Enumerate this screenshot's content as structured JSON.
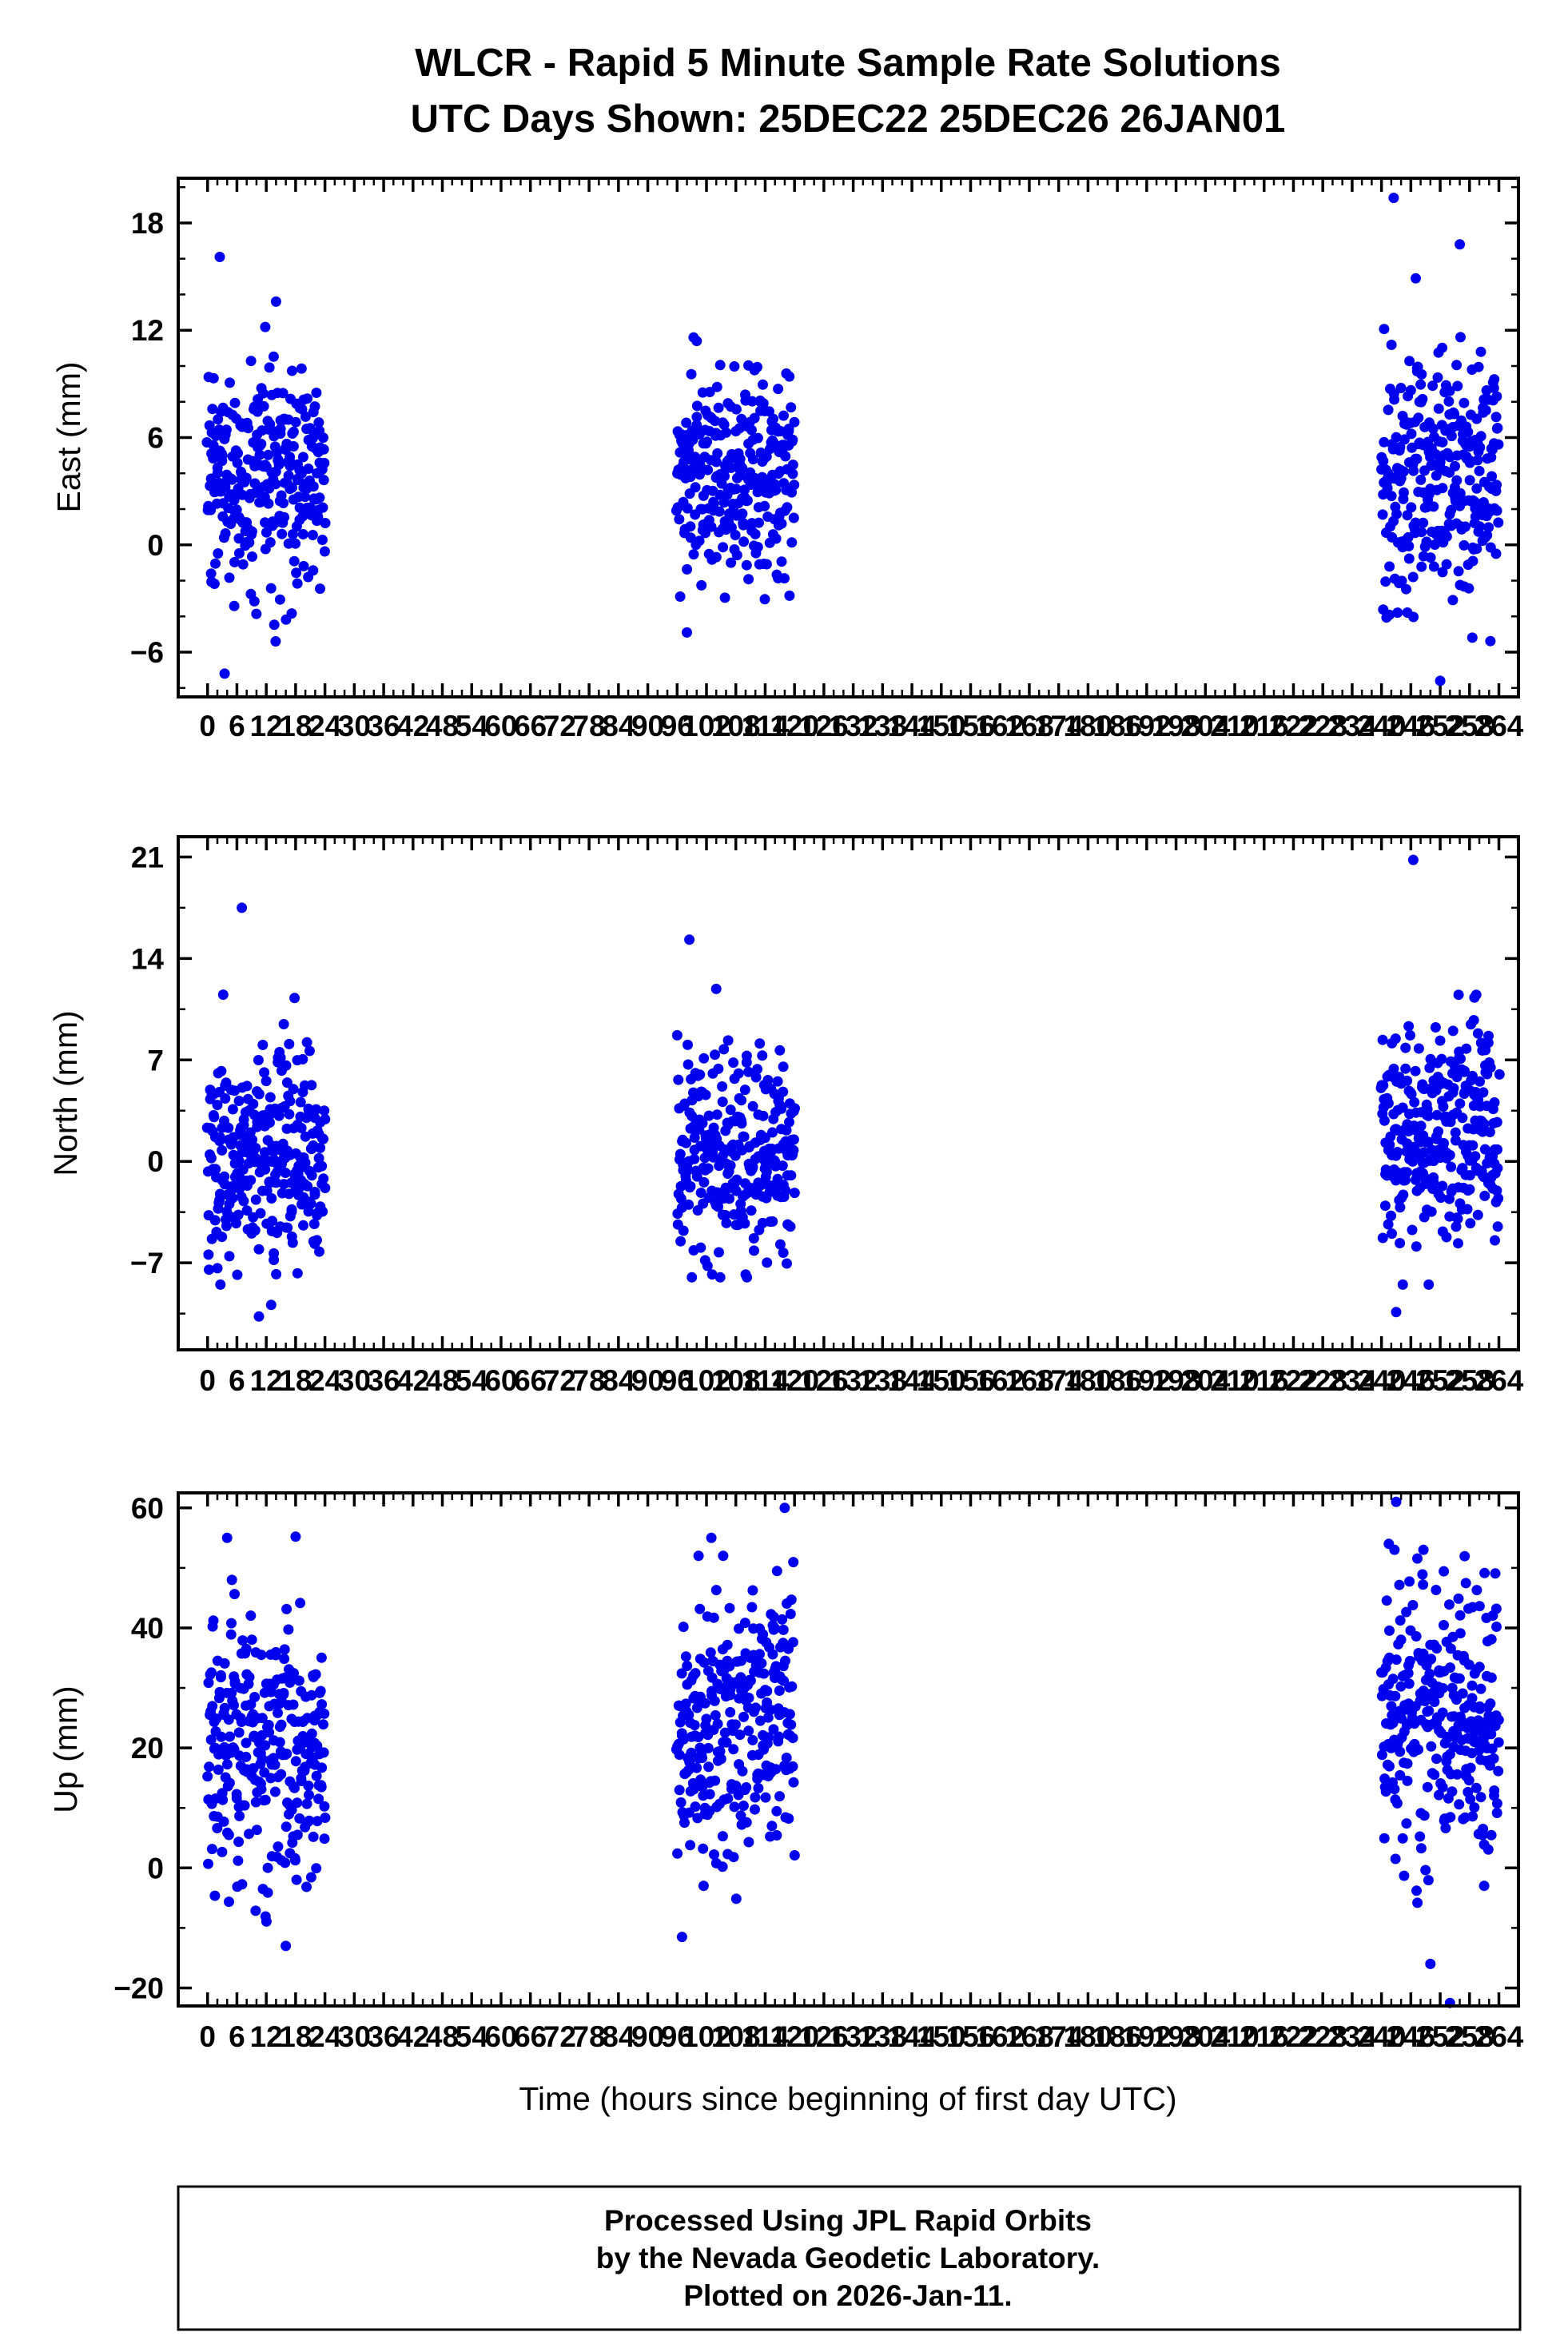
{
  "title": "WLCR - Rapid 5 Minute Sample Rate Solutions",
  "subtitle": "UTC Days Shown:  25DEC22 25DEC26 26JAN01",
  "xlabel": "Time (hours since beginning of first day UTC)",
  "footer": {
    "line1": "Processed Using JPL Rapid Orbits",
    "line2": "by the Nevada Geodetic Laboratory.",
    "line3": "Plotted on 2026-Jan-11."
  },
  "point_color": "#0000ee",
  "axis_color": "#000000",
  "chart_data": [
    {
      "type": "scatter",
      "title": "",
      "ylabel": "East (mm)",
      "ylim": [
        -8.5,
        20.5
      ],
      "yticks": [
        -6,
        0,
        6,
        12,
        18
      ],
      "y_minor_step": 2,
      "xlim": [
        -6,
        268
      ],
      "xtick_step": 6,
      "xtick_max": 264,
      "x_minor_step": 2,
      "grid": false,
      "legend": "none",
      "clusters": [
        {
          "x_start": 0,
          "x_end": 24,
          "count": 285,
          "y_mean": 3.6,
          "y_std": 3.1,
          "y_min": -5.5,
          "y_max": 12.6
        },
        {
          "x_start": 96,
          "x_end": 120,
          "count": 285,
          "y_mean": 3.7,
          "y_std": 2.9,
          "y_min": -5.0,
          "y_max": 11.6
        },
        {
          "x_start": 240,
          "x_end": 264,
          "count": 290,
          "y_mean": 3.9,
          "y_std": 3.6,
          "y_min": -6.0,
          "y_max": 14.8
        }
      ],
      "outliers": [
        [
          2.5,
          16.1
        ],
        [
          3.5,
          -7.2
        ],
        [
          14,
          13.6
        ],
        [
          100,
          11.4
        ],
        [
          98,
          -4.9
        ],
        [
          242.5,
          19.4
        ],
        [
          256,
          16.8
        ],
        [
          252,
          -7.6
        ],
        [
          247,
          14.9
        ],
        [
          258.5,
          9.8
        ]
      ]
    },
    {
      "type": "scatter",
      "title": "",
      "ylabel": "North (mm)",
      "ylim": [
        -13,
        22.4
      ],
      "yticks": [
        -7,
        0,
        7,
        14,
        21
      ],
      "y_minor_step": 3.5,
      "xlim": [
        -6,
        268
      ],
      "xtick_step": 6,
      "xtick_max": 264,
      "x_minor_step": 2,
      "grid": false,
      "legend": "none",
      "clusters": [
        {
          "x_start": 0,
          "x_end": 24,
          "count": 285,
          "y_mean": 0.3,
          "y_std": 3.6,
          "y_min": -8.5,
          "y_max": 12.8
        },
        {
          "x_start": 96,
          "x_end": 120,
          "count": 285,
          "y_mean": 0.6,
          "y_std": 3.8,
          "y_min": -8.0,
          "y_max": 12.0
        },
        {
          "x_start": 240,
          "x_end": 264,
          "count": 290,
          "y_mean": 2.4,
          "y_std": 3.9,
          "y_min": -8.5,
          "y_max": 11.5
        }
      ],
      "outliers": [
        [
          7,
          17.5
        ],
        [
          10.5,
          -10.7
        ],
        [
          13,
          -9.9
        ],
        [
          98.5,
          15.3
        ],
        [
          104,
          11.9
        ],
        [
          110,
          -7.8
        ],
        [
          246.5,
          20.8
        ],
        [
          243,
          -10.4
        ],
        [
          259,
          11.3
        ]
      ]
    },
    {
      "type": "scatter",
      "title": "",
      "ylabel": "Up (mm)",
      "ylim": [
        -23,
        62.5
      ],
      "yticks": [
        -20,
        0,
        20,
        40,
        60
      ],
      "y_minor_step": 10,
      "xlim": [
        -6,
        268
      ],
      "xtick_step": 6,
      "xtick_max": 264,
      "x_minor_step": 2,
      "grid": false,
      "legend": "none",
      "clusters": [
        {
          "x_start": 0,
          "x_end": 24,
          "count": 285,
          "y_mean": 20,
          "y_std": 11,
          "y_min": -9,
          "y_max": 48
        },
        {
          "x_start": 96,
          "x_end": 120,
          "count": 285,
          "y_mean": 25,
          "y_std": 11,
          "y_min": -8,
          "y_max": 52
        },
        {
          "x_start": 240,
          "x_end": 264,
          "count": 290,
          "y_mean": 25,
          "y_std": 12,
          "y_min": -14,
          "y_max": 53
        }
      ],
      "outliers": [
        [
          4,
          55
        ],
        [
          18,
          55.2
        ],
        [
          16,
          -13
        ],
        [
          118,
          60
        ],
        [
          103,
          55
        ],
        [
          97,
          -11.5
        ],
        [
          243,
          61
        ],
        [
          241.5,
          54
        ],
        [
          254,
          -22.5
        ],
        [
          250,
          -16
        ]
      ]
    }
  ]
}
